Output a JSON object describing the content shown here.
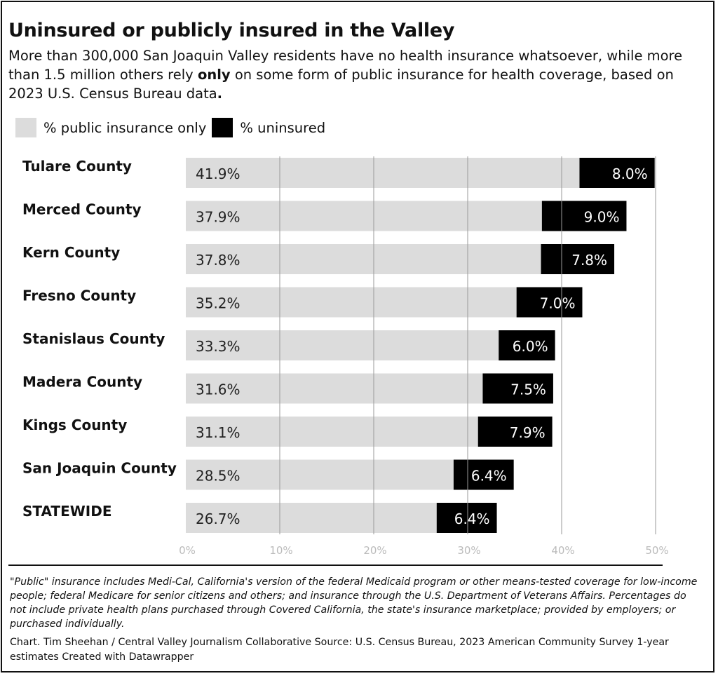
{
  "title": "Uninsured or publicly insured in the Valley",
  "subtitle": {
    "before": "More than 300,000 San Joaquin Valley residents have no health insurance whatsoever, while more than 1.5 million others rely ",
    "emphasis": "only",
    "after": " on some form of public insurance for health coverage, based on 2023 U.S. Census Bureau data",
    "end": "."
  },
  "legend": [
    {
      "label": "% public insurance only",
      "color": "#dcdcdc"
    },
    {
      "label": "% uninsured",
      "color": "#000000"
    }
  ],
  "chart_data": {
    "type": "bar",
    "orientation": "horizontal",
    "stacked": true,
    "categories": [
      "Tulare County",
      "Merced County",
      "Kern County",
      "Fresno County",
      "Stanislaus County",
      "Madera County",
      "Kings County",
      "San Joaquin County",
      "STATEWIDE"
    ],
    "series": [
      {
        "name": "% public insurance only",
        "color": "#dcdcdc",
        "values": [
          41.9,
          37.9,
          37.8,
          35.2,
          33.3,
          31.6,
          31.1,
          28.5,
          26.7
        ],
        "labels": [
          "41.9%",
          "37.9%",
          "37.8%",
          "35.2%",
          "33.3%",
          "31.6%",
          "31.1%",
          "28.5%",
          "26.7%"
        ]
      },
      {
        "name": "% uninsured",
        "color": "#000000",
        "values": [
          8.0,
          9.0,
          7.8,
          7.0,
          6.0,
          7.5,
          7.9,
          6.4,
          6.4
        ],
        "labels": [
          "8.0%",
          "9.0%",
          "7.8%",
          "7.0%",
          "6.0%",
          "7.5%",
          "7.9%",
          "6.4%",
          "6.4%"
        ]
      }
    ],
    "xlim": [
      0,
      50
    ],
    "xticks": [
      0,
      10,
      20,
      30,
      40,
      50
    ],
    "xtick_labels": [
      "0%",
      "10%",
      "20%",
      "30%",
      "40%",
      "50%"
    ],
    "grid": true,
    "legend_position": "top-left"
  },
  "notes": "\"Public\" insurance includes Medi-Cal, California's version of the federal Medicaid program or other means-tested coverage for low-income people; federal Medicare for senior citizens and others; and insurance through the U.S. Department of Veterans Affairs. Percentages do not include private health plans purchased through Covered California, the state's insurance marketplace; provided by employers; or purchased individually.",
  "credit": "Chart. Tim Sheehan / Central Valley Journalism Collaborative Source: U.S. Census Bureau, 2023 American Community Survey 1-year estimates Created with Datawrapper"
}
